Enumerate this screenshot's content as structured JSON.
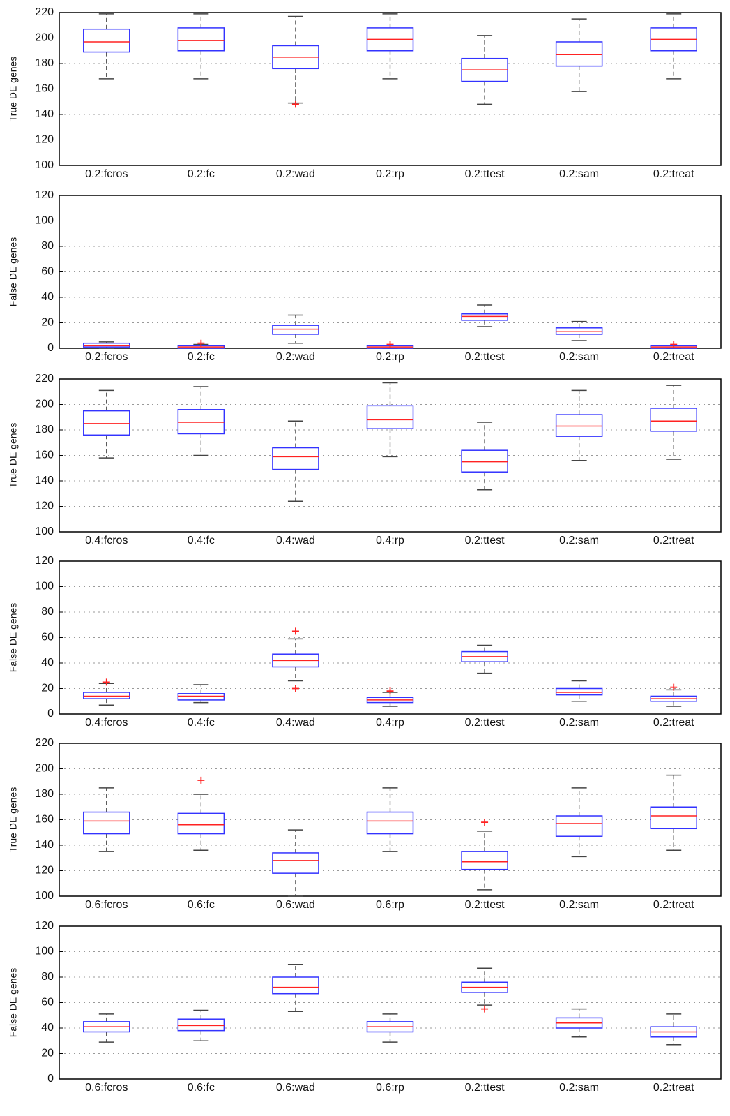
{
  "chart_data": [
    {
      "type": "box",
      "ylabel": "True DE genes",
      "categories": [
        "0.2:fcros",
        "0.2:fc",
        "0.2:wad",
        "0.2:rp",
        "0.2:ttest",
        "0.2:sam",
        "0.2:treat"
      ],
      "ylim": [
        100,
        220
      ],
      "yticks": [
        100,
        120,
        140,
        160,
        180,
        200,
        220
      ],
      "grid": true,
      "box_color": "#3333ff",
      "median_color": "#ff2222",
      "whisker_color": "#444444",
      "outlier_color": "#ff2222",
      "boxes": [
        {
          "low": 168,
          "q1": 189,
          "median": 197,
          "q3": 207,
          "high": 219
        },
        {
          "low": 168,
          "q1": 190,
          "median": 198,
          "q3": 208,
          "high": 219
        },
        {
          "low": 149,
          "q1": 176,
          "median": 185,
          "q3": 194,
          "high": 217,
          "outliers": [
            148
          ]
        },
        {
          "low": 168,
          "q1": 190,
          "median": 199,
          "q3": 208,
          "high": 219
        },
        {
          "low": 148,
          "q1": 166,
          "median": 175,
          "q3": 184,
          "high": 202
        },
        {
          "low": 158,
          "q1": 178,
          "median": 187,
          "q3": 197,
          "high": 215
        },
        {
          "low": 168,
          "q1": 190,
          "median": 199,
          "q3": 208,
          "high": 219
        }
      ]
    },
    {
      "type": "box",
      "ylabel": "False DE genes",
      "categories": [
        "0.2:fcros",
        "0.2:fc",
        "0.2:wad",
        "0.2:rp",
        "0.2:ttest",
        "0.2:sam",
        "0.2:treat"
      ],
      "ylim": [
        0,
        120
      ],
      "yticks": [
        0,
        20,
        40,
        60,
        80,
        100,
        120
      ],
      "grid": true,
      "box_color": "#3333ff",
      "median_color": "#ff2222",
      "whisker_color": "#444444",
      "outlier_color": "#ff2222",
      "boxes": [
        {
          "low": 0,
          "q1": 1,
          "median": 2,
          "q3": 4,
          "high": 5
        },
        {
          "low": 0,
          "q1": 0,
          "median": 1,
          "q3": 2,
          "high": 3,
          "outliers": [
            4
          ]
        },
        {
          "low": 4,
          "q1": 11,
          "median": 15,
          "q3": 18,
          "high": 26
        },
        {
          "low": 0,
          "q1": 0,
          "median": 1,
          "q3": 2,
          "high": 2,
          "outliers": [
            3
          ]
        },
        {
          "low": 17,
          "q1": 22,
          "median": 25,
          "q3": 27,
          "high": 34
        },
        {
          "low": 6,
          "q1": 11,
          "median": 13,
          "q3": 16,
          "high": 21
        },
        {
          "low": 0,
          "q1": 0,
          "median": 1,
          "q3": 2,
          "high": 2,
          "outliers": [
            3
          ]
        }
      ]
    },
    {
      "type": "box",
      "ylabel": "True DE genes",
      "categories": [
        "0.4:fcros",
        "0.4:fc",
        "0.4:wad",
        "0.4:rp",
        "0.2:ttest",
        "0.2:sam",
        "0.2:treat"
      ],
      "ylim": [
        100,
        220
      ],
      "yticks": [
        100,
        120,
        140,
        160,
        180,
        200,
        220
      ],
      "grid": true,
      "box_color": "#3333ff",
      "median_color": "#ff2222",
      "whisker_color": "#444444",
      "outlier_color": "#ff2222",
      "boxes": [
        {
          "low": 158,
          "q1": 176,
          "median": 185,
          "q3": 195,
          "high": 211
        },
        {
          "low": 160,
          "q1": 177,
          "median": 186,
          "q3": 196,
          "high": 214
        },
        {
          "low": 124,
          "q1": 149,
          "median": 159,
          "q3": 166,
          "high": 187
        },
        {
          "low": 159,
          "q1": 181,
          "median": 188,
          "q3": 199,
          "high": 217
        },
        {
          "low": 133,
          "q1": 147,
          "median": 155,
          "q3": 164,
          "high": 186
        },
        {
          "low": 156,
          "q1": 175,
          "median": 183,
          "q3": 192,
          "high": 211
        },
        {
          "low": 157,
          "q1": 179,
          "median": 187,
          "q3": 197,
          "high": 215
        }
      ]
    },
    {
      "type": "box",
      "ylabel": "False DE genes",
      "categories": [
        "0.4:fcros",
        "0.4:fc",
        "0.4:wad",
        "0.4:rp",
        "0.2:ttest",
        "0.2:sam",
        "0.2:treat"
      ],
      "ylim": [
        0,
        120
      ],
      "yticks": [
        0,
        20,
        40,
        60,
        80,
        100,
        120
      ],
      "grid": true,
      "box_color": "#3333ff",
      "median_color": "#ff2222",
      "whisker_color": "#444444",
      "outlier_color": "#ff2222",
      "boxes": [
        {
          "low": 7,
          "q1": 12,
          "median": 14,
          "q3": 17,
          "high": 24,
          "outliers": [
            25
          ]
        },
        {
          "low": 9,
          "q1": 11,
          "median": 14,
          "q3": 16,
          "high": 23
        },
        {
          "low": 26,
          "q1": 37,
          "median": 42,
          "q3": 47,
          "high": 59,
          "outliers": [
            65,
            20
          ]
        },
        {
          "low": 6,
          "q1": 9,
          "median": 11,
          "q3": 13,
          "high": 17,
          "outliers": [
            18
          ]
        },
        {
          "low": 32,
          "q1": 41,
          "median": 45,
          "q3": 49,
          "high": 54
        },
        {
          "low": 10,
          "q1": 15,
          "median": 17,
          "q3": 20,
          "high": 26
        },
        {
          "low": 6,
          "q1": 10,
          "median": 12,
          "q3": 14,
          "high": 19,
          "outliers": [
            21
          ]
        }
      ]
    },
    {
      "type": "box",
      "ylabel": "True DE genes",
      "categories": [
        "0.6:fcros",
        "0.6:fc",
        "0.6:wad",
        "0.6:rp",
        "0.2:ttest",
        "0.2:sam",
        "0.2:treat"
      ],
      "ylim": [
        100,
        220
      ],
      "yticks": [
        100,
        120,
        140,
        160,
        180,
        200,
        220
      ],
      "grid": true,
      "box_color": "#3333ff",
      "median_color": "#ff2222",
      "whisker_color": "#444444",
      "outlier_color": "#ff2222",
      "boxes": [
        {
          "low": 135,
          "q1": 149,
          "median": 159,
          "q3": 166,
          "high": 185
        },
        {
          "low": 136,
          "q1": 149,
          "median": 156,
          "q3": 165,
          "high": 180,
          "outliers": [
            191
          ]
        },
        {
          "low": 100,
          "q1": 118,
          "median": 128,
          "q3": 134,
          "high": 152
        },
        {
          "low": 135,
          "q1": 149,
          "median": 159,
          "q3": 166,
          "high": 185
        },
        {
          "low": 105,
          "q1": 121,
          "median": 127,
          "q3": 135,
          "high": 151,
          "outliers": [
            158
          ]
        },
        {
          "low": 131,
          "q1": 147,
          "median": 157,
          "q3": 163,
          "high": 185
        },
        {
          "low": 136,
          "q1": 153,
          "median": 163,
          "q3": 170,
          "high": 195
        }
      ]
    },
    {
      "type": "box",
      "ylabel": "False DE genes",
      "categories": [
        "0.6:fcros",
        "0.6:fc",
        "0.6:wad",
        "0.6:rp",
        "0.2:ttest",
        "0.2:sam",
        "0.2:treat"
      ],
      "ylim": [
        0,
        120
      ],
      "yticks": [
        0,
        20,
        40,
        60,
        80,
        100,
        120
      ],
      "grid": true,
      "box_color": "#3333ff",
      "median_color": "#ff2222",
      "whisker_color": "#444444",
      "outlier_color": "#ff2222",
      "boxes": [
        {
          "low": 29,
          "q1": 37,
          "median": 41,
          "q3": 45,
          "high": 51
        },
        {
          "low": 30,
          "q1": 38,
          "median": 42,
          "q3": 47,
          "high": 54
        },
        {
          "low": 53,
          "q1": 67,
          "median": 72,
          "q3": 80,
          "high": 90
        },
        {
          "low": 29,
          "q1": 37,
          "median": 41,
          "q3": 45,
          "high": 51
        },
        {
          "low": 58,
          "q1": 68,
          "median": 72,
          "q3": 76,
          "high": 87,
          "outliers": [
            55
          ]
        },
        {
          "low": 33,
          "q1": 40,
          "median": 44,
          "q3": 48,
          "high": 55
        },
        {
          "low": 27,
          "q1": 33,
          "median": 37,
          "q3": 41,
          "high": 51
        }
      ]
    }
  ]
}
